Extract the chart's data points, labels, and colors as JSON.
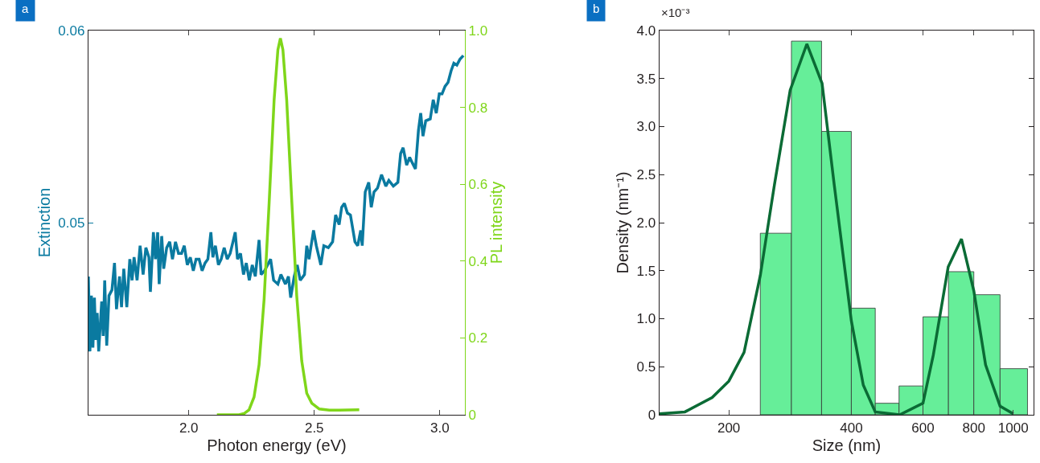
{
  "chart_data": [
    {
      "type": "line",
      "title": "a",
      "xlabel": "Photon energy (eV)",
      "ylabel": "Extinction",
      "y2label": "PL intensity",
      "xlim": [
        1.6,
        3.1
      ],
      "xticks": [
        {
          "value": 2,
          "label": "2.0"
        },
        2.5,
        {
          "value": 3,
          "label": "3.0"
        }
      ],
      "ylim": [
        0.04,
        0.06
      ],
      "yticks": [
        0.05,
        0.06
      ],
      "y2lim": [
        0,
        1
      ],
      "y2ticks": [
        0,
        0.2,
        0.4,
        0.6,
        0.8,
        {
          "value": 1,
          "label": "1.0"
        }
      ],
      "marker": "none",
      "line_style": "solid",
      "series": [
        {
          "color": "#0a7aa0",
          "x": [
            1.6,
            1.606,
            1.612,
            1.618,
            1.624,
            1.629,
            1.635,
            1.641,
            1.653,
            1.659,
            1.665,
            1.673,
            1.682,
            1.694,
            1.704,
            1.712,
            1.724,
            1.732,
            1.741,
            1.753,
            1.765,
            1.774,
            1.782,
            1.794,
            1.806,
            1.818,
            1.829,
            1.841,
            1.847,
            1.859,
            1.867,
            1.876,
            1.882,
            1.892,
            1.9,
            1.912,
            1.924,
            1.935,
            1.947,
            1.959,
            1.971,
            1.982,
            1.994,
            2.006,
            2.018,
            2.029,
            2.041,
            2.053,
            2.065,
            2.076,
            2.088,
            2.096,
            2.106,
            2.118,
            2.129,
            2.141,
            2.153,
            2.165,
            2.176,
            2.185,
            2.194,
            2.206,
            2.218,
            2.229,
            2.241,
            2.253,
            2.265,
            2.28,
            2.288,
            2.302,
            2.326,
            2.338,
            2.355,
            2.367,
            2.385,
            2.397,
            2.406,
            2.42,
            2.432,
            2.444,
            2.461,
            2.47,
            2.479,
            2.497,
            2.508,
            2.526,
            2.538,
            2.556,
            2.573,
            2.585,
            2.599,
            2.609,
            2.62,
            2.632,
            2.644,
            2.662,
            2.673,
            2.685,
            2.691,
            2.703,
            2.717,
            2.727,
            2.738,
            2.752,
            2.768,
            2.785,
            2.797,
            2.815,
            2.833,
            2.844,
            2.854,
            2.868,
            2.88,
            2.891,
            2.903,
            2.915,
            2.924,
            2.933,
            2.944,
            2.962,
            2.974,
            2.986,
            2.998,
            3.009,
            3.021,
            3.033,
            3.045,
            3.056,
            3.068,
            3.08,
            3.094
          ],
          "values": [
            0.0472,
            0.0433,
            0.0462,
            0.0435,
            0.0461,
            0.0439,
            0.0453,
            0.0433,
            0.0459,
            0.0441,
            0.047,
            0.0436,
            0.0462,
            0.0465,
            0.0479,
            0.0455,
            0.0472,
            0.0456,
            0.0476,
            0.0456,
            0.0481,
            0.047,
            0.0482,
            0.047,
            0.0488,
            0.0473,
            0.0487,
            0.0482,
            0.0464,
            0.0495,
            0.0481,
            0.0495,
            0.0468,
            0.0493,
            0.0476,
            0.0487,
            0.049,
            0.0481,
            0.049,
            0.0484,
            0.0484,
            0.0488,
            0.0478,
            0.0482,
            0.0475,
            0.0481,
            0.0481,
            0.0475,
            0.0479,
            0.0481,
            0.0495,
            0.0482,
            0.0488,
            0.0478,
            0.0481,
            0.0487,
            0.0481,
            0.0484,
            0.049,
            0.0495,
            0.0481,
            0.0484,
            0.0473,
            0.0479,
            0.047,
            0.0478,
            0.0472,
            0.0491,
            0.0473,
            0.0475,
            0.0481,
            0.047,
            0.0468,
            0.0473,
            0.0468,
            0.0472,
            0.0461,
            0.0472,
            0.0478,
            0.047,
            0.0473,
            0.0488,
            0.0481,
            0.0496,
            0.0488,
            0.0478,
            0.0488,
            0.0487,
            0.049,
            0.0504,
            0.0499,
            0.0508,
            0.051,
            0.0505,
            0.0504,
            0.049,
            0.0488,
            0.0496,
            0.0488,
            0.0516,
            0.0521,
            0.0508,
            0.0516,
            0.0518,
            0.0525,
            0.0519,
            0.0522,
            0.0519,
            0.0521,
            0.0536,
            0.0539,
            0.053,
            0.0534,
            0.0531,
            0.0528,
            0.0548,
            0.0557,
            0.0545,
            0.0553,
            0.0554,
            0.0564,
            0.0557,
            0.0567,
            0.0567,
            0.0571,
            0.0573,
            0.0579,
            0.0583,
            0.0582,
            0.0585,
            0.0587
          ]
        },
        {
          "color": "#7fd61a",
          "axis": "y2",
          "x": [
            2.112,
            2.15,
            2.2,
            2.22,
            2.24,
            2.26,
            2.28,
            2.3,
            2.32,
            2.34,
            2.355,
            2.365,
            2.375,
            2.39,
            2.41,
            2.43,
            2.45,
            2.47,
            2.49,
            2.52,
            2.56,
            2.6,
            2.679
          ],
          "values": [
            0,
            0,
            0,
            0.003,
            0.013,
            0.046,
            0.13,
            0.3,
            0.55,
            0.82,
            0.95,
            0.98,
            0.95,
            0.82,
            0.56,
            0.31,
            0.14,
            0.056,
            0.03,
            0.015,
            0.012,
            0.012,
            0.013
          ]
        }
      ]
    },
    {
      "type": "histogram",
      "title": "b",
      "xlabel": "Size (nm)",
      "ylabel": "Density (nm⁻¹)",
      "annotations": [
        "×10⁻³"
      ],
      "log": "x",
      "xlim": [
        135,
        1123
      ],
      "xticks": [
        200,
        400,
        600,
        800,
        1000
      ],
      "ylim": [
        0,
        4
      ],
      "yticks": [
        0,
        0.5,
        {
          "value": 1,
          "label": "1.0"
        },
        1.5,
        {
          "value": 2,
          "label": "2.0"
        },
        2.5,
        {
          "value": 3,
          "label": "3.0"
        },
        3.5,
        {
          "value": 4,
          "label": "4.0"
        }
      ],
      "color": "#66ee99",
      "bins": [
        239,
        285,
        338,
        400,
        458,
        524,
        600,
        693,
        800,
        928,
        1084
      ],
      "values": [
        1.89,
        3.89,
        2.95,
        1.11,
        0.12,
        0.3,
        1.02,
        1.49,
        1.25,
        0.48
      ],
      "series": [
        {
          "type": "line",
          "color": "#0b6b35",
          "x": [
            135,
            156,
            182,
            200,
            218,
            239,
            259,
            283,
            311,
            339,
            363,
            400,
            428,
            458,
            526,
            600,
            636,
            692,
            746,
            800,
            855,
            928,
            1000
          ],
          "values": [
            0.01,
            0.03,
            0.18,
            0.35,
            0.65,
            1.45,
            2.4,
            3.38,
            3.86,
            3.45,
            2.4,
            0.98,
            0.31,
            0.03,
            0,
            0.12,
            0.62,
            1.54,
            1.83,
            1.29,
            0.52,
            0.09,
            0.01
          ]
        }
      ]
    }
  ]
}
